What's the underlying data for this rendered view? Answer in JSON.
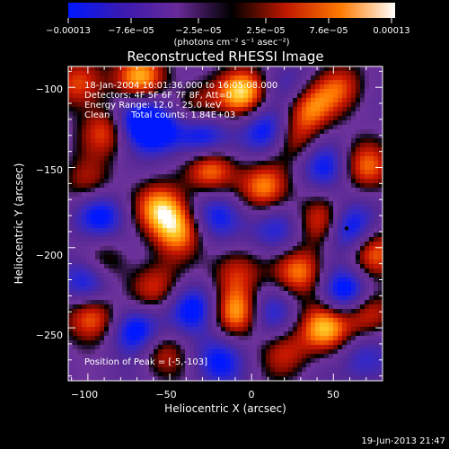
{
  "chart_data": {
    "type": "heatmap",
    "title": "Reconstructed RHESSI Image",
    "xlabel": "Heliocentric X (arcsec)",
    "ylabel": "Heliocentric Y (arcsec)",
    "xlim": [
      -112,
      80
    ],
    "ylim": [
      -283,
      -87
    ],
    "x_ticks": [
      -100,
      -50,
      0,
      50
    ],
    "x_tick_labels": [
      "−100",
      "−50",
      "0",
      "50"
    ],
    "y_ticks": [
      -100,
      -150,
      -200,
      -250
    ],
    "y_tick_labels": [
      "−100",
      "−150",
      "−200",
      "−250"
    ],
    "colorbar": {
      "range": [
        -0.00013,
        0.00013
      ],
      "tick_labels": [
        "−0.00013",
        "−7.6e−05",
        "−2.5e−05",
        "2.5e−05",
        "7.6e−05",
        "0.00013"
      ],
      "units_label": "(photons cm⁻² s⁻¹ asec⁻²)",
      "colors": [
        "#0018ff",
        "#3a1ab0",
        "#6a2a9a",
        "#000000",
        "#c01800",
        "#ff7a00",
        "#ffffff"
      ]
    },
    "peak": {
      "x": -5,
      "y": -103,
      "marker_color": "#000000"
    },
    "blobs": [
      {
        "x": -68,
        "y": -93,
        "v": 0.9
      },
      {
        "x": -105,
        "y": -98,
        "v": 0.7
      },
      {
        "x": 55,
        "y": -100,
        "v": 0.6
      },
      {
        "x": 35,
        "y": -112,
        "v": 0.75
      },
      {
        "x": -35,
        "y": -112,
        "v": 0.5
      },
      {
        "x": -5,
        "y": -103,
        "v": 1.0
      },
      {
        "x": -25,
        "y": -150,
        "v": 0.9
      },
      {
        "x": 8,
        "y": -163,
        "v": 0.85
      },
      {
        "x": -88,
        "y": -127,
        "v": 0.7
      },
      {
        "x": 25,
        "y": -132,
        "v": 0.6
      },
      {
        "x": 70,
        "y": -150,
        "v": 0.7
      },
      {
        "x": -55,
        "y": -175,
        "v": 0.9
      },
      {
        "x": -45,
        "y": -190,
        "v": 0.8
      },
      {
        "x": -90,
        "y": -210,
        "v": 0.5
      },
      {
        "x": 45,
        "y": -185,
        "v": 0.8
      },
      {
        "x": 30,
        "y": -215,
        "v": 0.8
      },
      {
        "x": -10,
        "y": -215,
        "v": 0.6
      },
      {
        "x": 75,
        "y": -203,
        "v": 0.7
      },
      {
        "x": -8,
        "y": -240,
        "v": 0.9
      },
      {
        "x": -60,
        "y": -225,
        "v": 0.6
      },
      {
        "x": -55,
        "y": -265,
        "v": 0.55
      },
      {
        "x": -98,
        "y": -244,
        "v": 0.85
      },
      {
        "x": 45,
        "y": -250,
        "v": 0.9
      },
      {
        "x": 70,
        "y": -240,
        "v": 0.8
      },
      {
        "x": 20,
        "y": -265,
        "v": 0.5
      },
      {
        "x": -100,
        "y": -160,
        "v": 0.5
      },
      {
        "x": -70,
        "y": -120,
        "v": -0.9
      },
      {
        "x": -30,
        "y": -132,
        "v": -0.8
      },
      {
        "x": 10,
        "y": -128,
        "v": -0.85
      },
      {
        "x": 58,
        "y": -188,
        "v": -0.95
      },
      {
        "x": -55,
        "y": -128,
        "v": -0.6
      },
      {
        "x": -92,
        "y": -180,
        "v": -0.7
      },
      {
        "x": -20,
        "y": -180,
        "v": -0.7
      },
      {
        "x": 15,
        "y": -190,
        "v": -0.5
      },
      {
        "x": -100,
        "y": -220,
        "v": -0.8
      },
      {
        "x": -70,
        "y": -252,
        "v": -0.9
      },
      {
        "x": -35,
        "y": -238,
        "v": -0.7
      },
      {
        "x": 10,
        "y": -240,
        "v": -0.55
      },
      {
        "x": 58,
        "y": -228,
        "v": -0.95
      },
      {
        "x": 70,
        "y": -270,
        "v": -0.5
      },
      {
        "x": 45,
        "y": -150,
        "v": -0.6
      },
      {
        "x": 25,
        "y": -100,
        "v": -0.4
      },
      {
        "x": -20,
        "y": -270,
        "v": -0.6
      }
    ],
    "annotations": {
      "time_range": "18-Jan-2004 16:01:36.000 to 16:05:08.000",
      "detectors": "Detectors: 4F 5F 6F 7F 8F, Att=0",
      "energy_range": "Energy Range: 12.0 - 25.0 keV",
      "method": "Clean",
      "total_counts": "Total counts: 1.84E+03",
      "peak_position": "Position of Peak = [-5,-103]"
    },
    "timestamp": "19-Jun-2013 21:47"
  }
}
